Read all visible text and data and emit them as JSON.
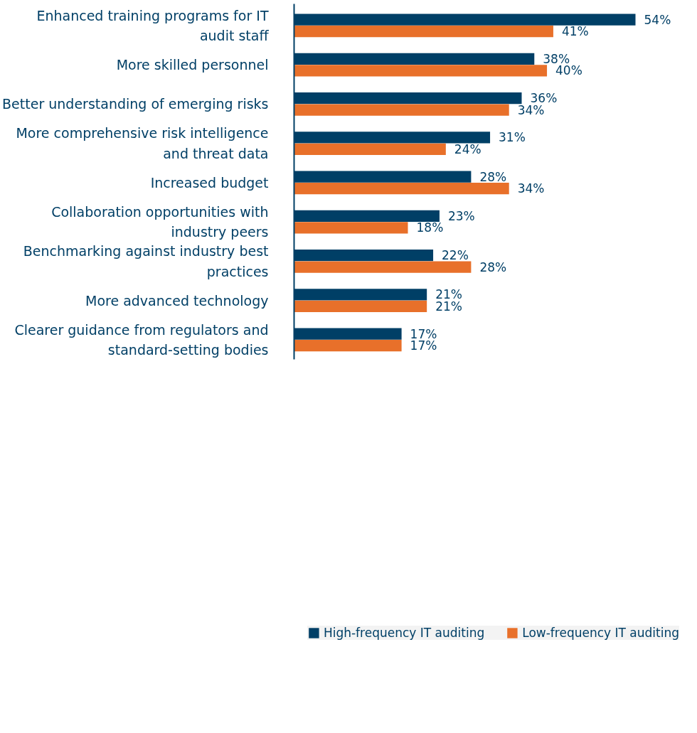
{
  "chart_data": {
    "type": "bar",
    "orientation": "horizontal",
    "categories": [
      "Enhanced training programs for IT audit staff",
      "More skilled personnel",
      "Better understanding of emerging risks",
      "More comprehensive risk intelligence and threat data",
      "Increased budget",
      "Collaboration opportunities with industry peers",
      "Benchmarking against industry best practices",
      "More advanced technology",
      "Clearer guidance from regulators and standard-setting bodies"
    ],
    "series": [
      {
        "name": "High-frequency IT auditing",
        "color": "#003f66",
        "values": [
          54,
          38,
          36,
          31,
          28,
          23,
          22,
          21,
          17
        ],
        "value_labels": [
          "54%",
          "38%",
          "36%",
          "31%",
          "28%",
          "23%",
          "22%",
          "21%",
          "17%"
        ]
      },
      {
        "name": "Low-frequency IT auditing",
        "color": "#e8702a",
        "values": [
          41,
          40,
          34,
          24,
          34,
          18,
          28,
          21,
          17
        ],
        "value_labels": [
          "41%",
          "40%",
          "34%",
          "24%",
          "34%",
          "18%",
          "28%",
          "21%",
          "17%"
        ]
      }
    ],
    "legend": "bottom",
    "grid": false,
    "tick_labels": "y"
  }
}
